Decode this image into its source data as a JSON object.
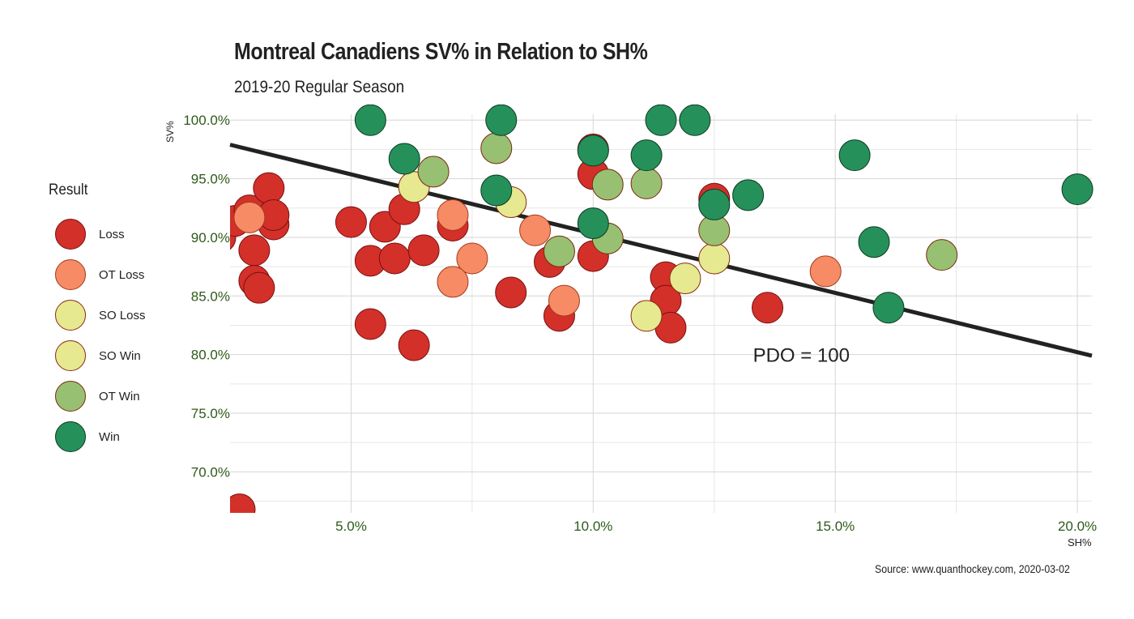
{
  "title": "Montreal Canadiens SV% in Relation to SH%",
  "subtitle": "2019-20 Regular Season",
  "source": "Source: www.quanthockey.com, 2020-03-02",
  "legend": {
    "title": "Result",
    "items": [
      {
        "label": "Loss",
        "color": "#d3302a",
        "border": "#7a1010"
      },
      {
        "label": "OT Loss",
        "color": "#f68b66",
        "border": "#a33a1a"
      },
      {
        "label": "SO Loss",
        "color": "#e6e98f",
        "border": "#8a2a10"
      },
      {
        "label": "SO Win",
        "color": "#e6e98f",
        "border": "#8a2a10"
      },
      {
        "label": "OT Win",
        "color": "#98c072",
        "border": "#7a2a10"
      },
      {
        "label": "Win",
        "color": "#26905a",
        "border": "#0c3a20"
      }
    ]
  },
  "chart_data": {
    "type": "scatter",
    "xlabel": "SH%",
    "ylabel": "SV%",
    "xlim": [
      2.5,
      20.3
    ],
    "ylim": [
      66.5,
      100.5
    ],
    "xticks": [
      5.0,
      10.0,
      15.0,
      20.0
    ],
    "xtick_labels": [
      "5.0%",
      "10.0%",
      "15.0%",
      "20.0%"
    ],
    "yticks": [
      70.0,
      75.0,
      80.0,
      85.0,
      90.0,
      95.0,
      100.0
    ],
    "ytick_labels": [
      "70.0%",
      "75.0%",
      "80.0%",
      "85.0%",
      "90.0%",
      "95.0%",
      "100.0%"
    ],
    "grid": true,
    "reference_line": {
      "label": "PDO = 100",
      "from": [
        2.5,
        97.9
      ],
      "to": [
        20.3,
        79.9
      ],
      "label_at": [
        13.3,
        80.0
      ]
    },
    "series": [
      {
        "name": "Loss",
        "points": [
          [
            2.3,
            90.0
          ],
          [
            2.6,
            91.4
          ],
          [
            2.9,
            92.3
          ],
          [
            3.3,
            94.2
          ],
          [
            3.4,
            91.1
          ],
          [
            3.4,
            91.9
          ],
          [
            3.0,
            88.9
          ],
          [
            3.0,
            86.3
          ],
          [
            3.1,
            85.7
          ],
          [
            2.7,
            66.8
          ],
          [
            5.0,
            91.3
          ],
          [
            5.4,
            88.0
          ],
          [
            5.7,
            90.9
          ],
          [
            5.9,
            88.2
          ],
          [
            6.1,
            92.4
          ],
          [
            6.5,
            88.9
          ],
          [
            5.4,
            82.6
          ],
          [
            6.3,
            80.8
          ],
          [
            7.1,
            91.0
          ],
          [
            8.3,
            85.3
          ],
          [
            9.1,
            87.9
          ],
          [
            9.3,
            83.3
          ],
          [
            10.0,
            88.4
          ],
          [
            10.0,
            95.4
          ],
          [
            10.0,
            97.5
          ],
          [
            11.5,
            86.6
          ],
          [
            11.5,
            84.6
          ],
          [
            11.6,
            82.3
          ],
          [
            12.5,
            93.3
          ],
          [
            13.6,
            84.0
          ]
        ]
      },
      {
        "name": "OT Loss",
        "points": [
          [
            2.9,
            91.7
          ],
          [
            7.1,
            91.9
          ],
          [
            7.5,
            88.2
          ],
          [
            7.1,
            86.2
          ],
          [
            8.8,
            90.6
          ],
          [
            9.4,
            84.6
          ],
          [
            14.8,
            87.1
          ]
        ]
      },
      {
        "name": "SO Loss",
        "points": [
          [
            6.3,
            94.3
          ],
          [
            8.3,
            93.0
          ],
          [
            11.1,
            83.3
          ],
          [
            11.9,
            86.5
          ],
          [
            12.5,
            88.2
          ]
        ]
      },
      {
        "name": "SO Win",
        "points": []
      },
      {
        "name": "OT Win",
        "points": [
          [
            6.7,
            95.6
          ],
          [
            8.0,
            97.6
          ],
          [
            9.3,
            88.8
          ],
          [
            10.3,
            94.5
          ],
          [
            10.3,
            89.9
          ],
          [
            11.1,
            94.6
          ],
          [
            12.5,
            90.6
          ],
          [
            17.2,
            88.5
          ]
        ]
      },
      {
        "name": "Win",
        "points": [
          [
            5.4,
            100.0
          ],
          [
            6.1,
            96.7
          ],
          [
            8.1,
            100.0
          ],
          [
            8.0,
            94.0
          ],
          [
            10.0,
            97.4
          ],
          [
            10.0,
            91.2
          ],
          [
            11.1,
            97.0
          ],
          [
            11.4,
            100.0
          ],
          [
            12.1,
            100.0
          ],
          [
            12.5,
            92.8
          ],
          [
            13.2,
            93.6
          ],
          [
            15.4,
            97.0
          ],
          [
            15.8,
            89.6
          ],
          [
            16.1,
            84.0
          ],
          [
            20.0,
            94.1
          ]
        ]
      }
    ]
  }
}
